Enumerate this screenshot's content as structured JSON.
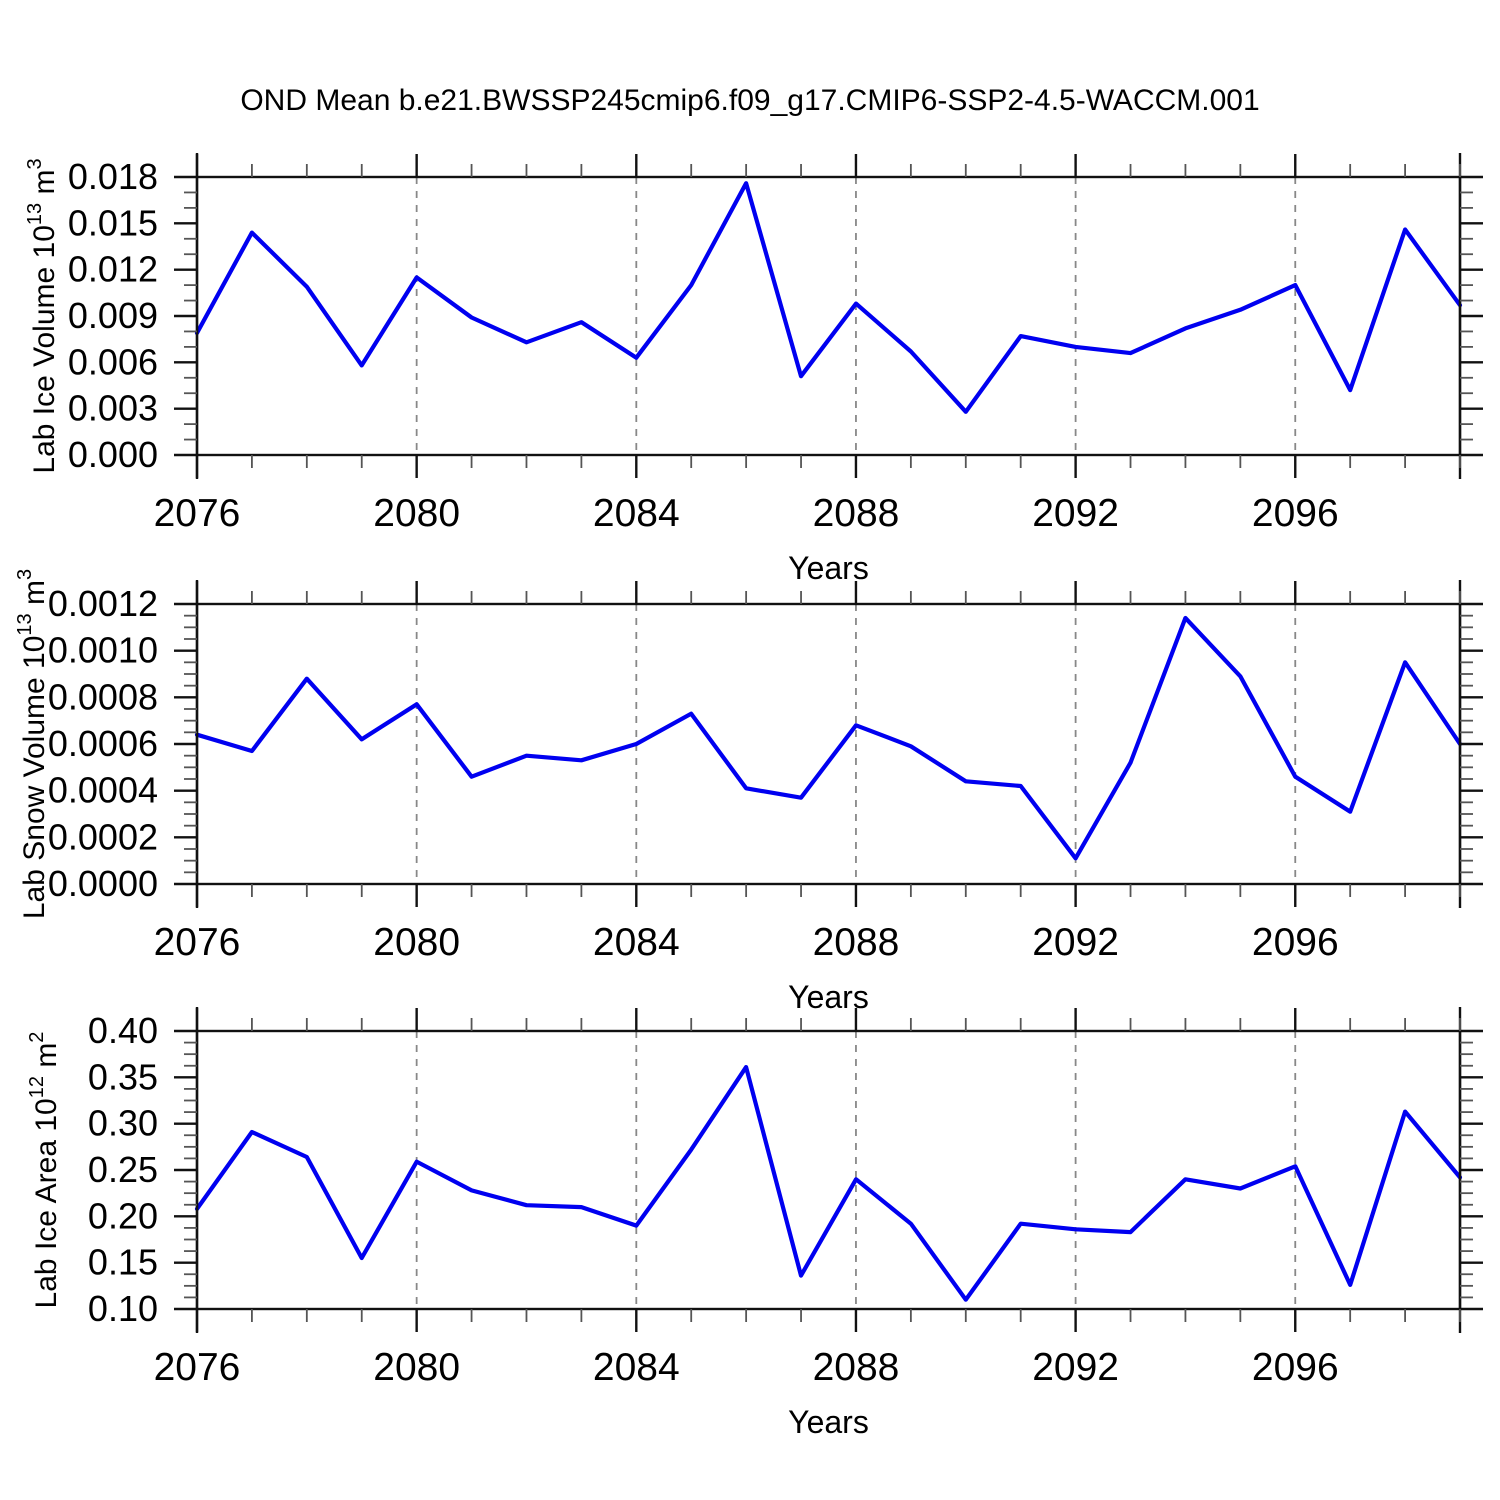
{
  "title": "OND Mean b.e21.BWSSP245cmip6.f09_g17.CMIP6-SSP2-4.5-WACCM.001",
  "colors": {
    "line": "#0000f0",
    "axis": "#111111",
    "minor_tick": "#555555",
    "grid": "#888888",
    "text": "#000000",
    "background": "#ffffff"
  },
  "chart_data": [
    {
      "type": "line",
      "name": "lab-ice-volume",
      "ylabel": "Lab Ice Volume 10^13 m^3",
      "ylabel_parts": [
        {
          "t": "Lab Ice Volume 10"
        },
        {
          "t": "13",
          "sup": true
        },
        {
          "t": " m"
        },
        {
          "t": "3",
          "sup": true
        }
      ],
      "xlabel": "Years",
      "xlim": [
        2076,
        2099
      ],
      "ylim": [
        0,
        0.018
      ],
      "x": [
        2076,
        2077,
        2078,
        2079,
        2080,
        2081,
        2082,
        2083,
        2084,
        2085,
        2086,
        2087,
        2088,
        2089,
        2090,
        2091,
        2092,
        2093,
        2094,
        2095,
        2096,
        2097,
        2098,
        2099
      ],
      "values": [
        0.0079,
        0.0144,
        0.0109,
        0.0058,
        0.0115,
        0.0089,
        0.0073,
        0.0086,
        0.0063,
        0.011,
        0.0176,
        0.0051,
        0.0098,
        0.0067,
        0.0028,
        0.0077,
        0.007,
        0.0066,
        0.0082,
        0.0094,
        0.011,
        0.0042,
        0.0146,
        0.0097
      ],
      "yticks": {
        "values": [
          0,
          0.003,
          0.006,
          0.009,
          0.012,
          0.015,
          0.018
        ],
        "labels": [
          "0.000",
          "0.003",
          "0.006",
          "0.009",
          "0.012",
          "0.015",
          "0.018"
        ],
        "minor_step": 0.001
      },
      "xticks": {
        "values": [
          2076,
          2080,
          2084,
          2088,
          2092,
          2096
        ],
        "labels": [
          "2076",
          "2080",
          "2084",
          "2088",
          "2092",
          "2096"
        ],
        "minor_step": 1,
        "grid_values": [
          2080,
          2084,
          2088,
          2092,
          2096
        ]
      }
    },
    {
      "type": "line",
      "name": "lab-snow-volume",
      "ylabel": "Lab Snow Volume 10^13 m^3",
      "ylabel_parts": [
        {
          "t": "Lab Snow Volume 10"
        },
        {
          "t": "13",
          "sup": true
        },
        {
          "t": " m"
        },
        {
          "t": "3",
          "sup": true
        }
      ],
      "xlabel": "Years",
      "xlim": [
        2076,
        2099
      ],
      "ylim": [
        0,
        0.0012
      ],
      "x": [
        2076,
        2077,
        2078,
        2079,
        2080,
        2081,
        2082,
        2083,
        2084,
        2085,
        2086,
        2087,
        2088,
        2089,
        2090,
        2091,
        2092,
        2093,
        2094,
        2095,
        2096,
        2097,
        2098,
        2099
      ],
      "values": [
        0.00064,
        0.00057,
        0.00088,
        0.00062,
        0.00077,
        0.00046,
        0.00055,
        0.00053,
        0.0006,
        0.00073,
        0.00041,
        0.00037,
        0.00068,
        0.00059,
        0.00044,
        0.00042,
        0.00011,
        0.00052,
        0.00114,
        0.00089,
        0.00046,
        0.00031,
        0.00095,
        0.0006
      ],
      "yticks": {
        "values": [
          0,
          0.0002,
          0.0004,
          0.0006,
          0.0008,
          0.001,
          0.0012
        ],
        "labels": [
          "0.0000",
          "0.0002",
          "0.0004",
          "0.0006",
          "0.0008",
          "0.0010",
          "0.0012"
        ],
        "minor_step": 5e-05
      },
      "xticks": {
        "values": [
          2076,
          2080,
          2084,
          2088,
          2092,
          2096
        ],
        "labels": [
          "2076",
          "2080",
          "2084",
          "2088",
          "2092",
          "2096"
        ],
        "minor_step": 1,
        "grid_values": [
          2080,
          2084,
          2088,
          2092,
          2096
        ]
      }
    },
    {
      "type": "line",
      "name": "lab-ice-area",
      "ylabel": "Lab Ice Area 10^12 m^2",
      "ylabel_parts": [
        {
          "t": "Lab Ice Area 10"
        },
        {
          "t": "12",
          "sup": true
        },
        {
          "t": " m"
        },
        {
          "t": "2",
          "sup": true
        }
      ],
      "xlabel": "Years",
      "xlim": [
        2076,
        2099
      ],
      "ylim": [
        0.1,
        0.4
      ],
      "x": [
        2076,
        2077,
        2078,
        2079,
        2080,
        2081,
        2082,
        2083,
        2084,
        2085,
        2086,
        2087,
        2088,
        2089,
        2090,
        2091,
        2092,
        2093,
        2094,
        2095,
        2096,
        2097,
        2098,
        2099
      ],
      "values": [
        0.208,
        0.291,
        0.264,
        0.155,
        0.259,
        0.228,
        0.212,
        0.21,
        0.19,
        0.272,
        0.361,
        0.136,
        0.24,
        0.192,
        0.11,
        0.192,
        0.186,
        0.183,
        0.24,
        0.23,
        0.254,
        0.126,
        0.313,
        0.242
      ],
      "yticks": {
        "values": [
          0.1,
          0.15,
          0.2,
          0.25,
          0.3,
          0.35,
          0.4
        ],
        "labels": [
          "0.10",
          "0.15",
          "0.20",
          "0.25",
          "0.30",
          "0.35",
          "0.40"
        ],
        "minor_step": 0.0125
      },
      "xticks": {
        "values": [
          2076,
          2080,
          2084,
          2088,
          2092,
          2096
        ],
        "labels": [
          "2076",
          "2080",
          "2084",
          "2088",
          "2092",
          "2096"
        ],
        "minor_step": 1,
        "grid_values": [
          2080,
          2084,
          2088,
          2092,
          2096
        ]
      }
    }
  ]
}
